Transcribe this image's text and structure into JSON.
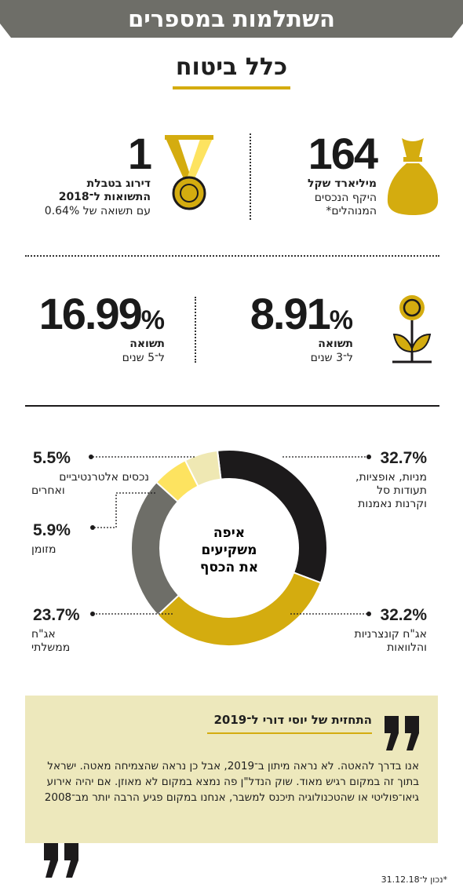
{
  "banner": {
    "title": "השתלמות במספרים"
  },
  "company": {
    "name": "כלל ביטוח"
  },
  "stats": {
    "assets": {
      "value": "164",
      "label_bold": "מיליארד שקל",
      "label_line1": "היקף הנכסים",
      "label_line2": "המנוהלים*"
    },
    "rank": {
      "value": "1",
      "label_bold_line1": "דירוג בטבלת",
      "label_bold_line2": "התשואות ל־2018",
      "label_line": "עם תשואה של 0.64%"
    },
    "ret3": {
      "value": "8.91",
      "pct": "%",
      "label_bold": "תשואה",
      "label": "ל־3 שנים"
    },
    "ret5": {
      "value": "16.99",
      "pct": "%",
      "label_bold": "תשואה",
      "label": "ל־5 שנים"
    }
  },
  "chart_data": {
    "type": "pie",
    "title": "איפה משקיעים את הכסף",
    "title_lines": [
      "איפה",
      "משקיעים",
      "את הכסף"
    ],
    "slices": [
      {
        "label": "מניות, אופציות, תעודות סל וקרנות נאמנות",
        "label_lines": [
          "מניות, אופציות,",
          "תעודות סל",
          "וקרנות נאמנות"
        ],
        "value": 32.7,
        "value_text": "32.7%",
        "color": "#1c1a1b"
      },
      {
        "label": "אג\"ח קונצרניות והלוואות",
        "label_lines": [
          "אג\"ח קונצרניות",
          "והלוואות"
        ],
        "value": 32.2,
        "value_text": "32.2%",
        "color": "#d4ac0f"
      },
      {
        "label": "אג\"ח ממשלתי",
        "label_lines": [
          "אג\"ח",
          "ממשלתי"
        ],
        "value": 23.7,
        "value_text": "23.7%",
        "color": "#6e6e68"
      },
      {
        "label": "מזומן",
        "label_lines": [
          "מזומן"
        ],
        "value": 5.9,
        "value_text": "5.9%",
        "color": "#fde360"
      },
      {
        "label": "נכסים אלטרנטיביים ואחרים",
        "label_lines": [
          "נכסים אלטרנטיביים",
          "ואחרים"
        ],
        "value": 5.5,
        "value_text": "5.5%",
        "color": "#efe8b3"
      }
    ]
  },
  "quote": {
    "title": "התחזית של יוסי דורי ל־2019",
    "text": "אנו בדרך להאטה. לא נראה מיתון ב־2019, אבל כן נראה שהצמיחה מאטה. ישראל בתוך זה במקום רגיש מאוד. שוק הנדל\"ן פה נמצא במקום לא מאוזן. אם יהיה אירוע גיאו־פוליטי או שהטכנולוגיה תיכנס למשבר, אנחנו במקום פגיע הרבה יותר מב־2008"
  },
  "footnote": "*נכון ל־31.12.18",
  "icons": {
    "money_bag": "money-bag-icon",
    "medal": "medal-icon",
    "coin_plant": "coin-plant-icon",
    "quote_mark": "quote-mark-icon"
  },
  "colors": {
    "banner": "#6e6e68",
    "accent": "#d4ac0f",
    "quote_bg": "#ede8bc"
  }
}
